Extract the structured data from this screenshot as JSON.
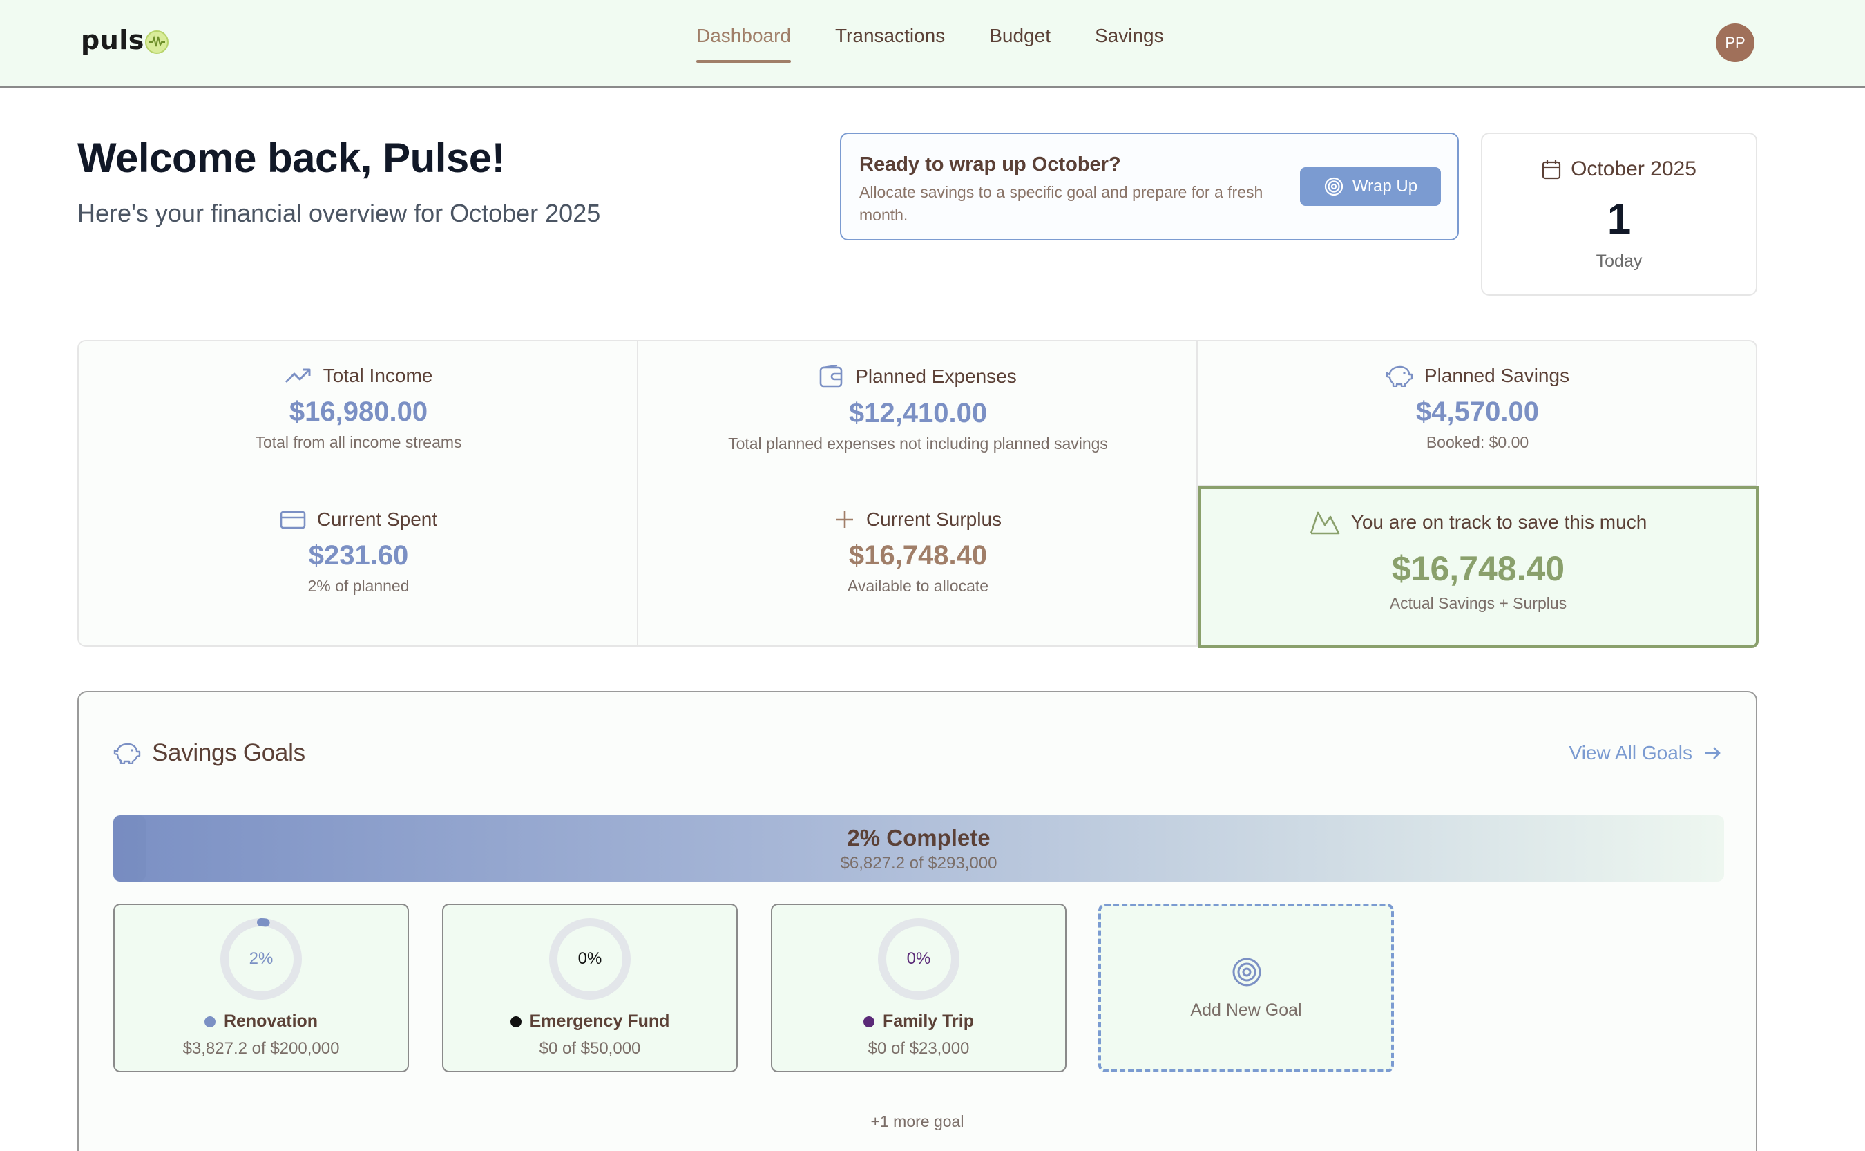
{
  "header": {
    "logo_text": "puls",
    "nav": [
      {
        "label": "Dashboard",
        "active": true
      },
      {
        "label": "Transactions",
        "active": false
      },
      {
        "label": "Budget",
        "active": false
      },
      {
        "label": "Savings",
        "active": false
      }
    ],
    "avatar_initials": "PP"
  },
  "welcome": {
    "title": "Welcome back, Pulse!",
    "subtitle": "Here's your financial overview for October 2025"
  },
  "wrapup": {
    "title": "Ready to wrap up October?",
    "description": "Allocate savings to a specific goal and prepare for a fresh month.",
    "button_label": "Wrap Up"
  },
  "date_card": {
    "month": "October 2025",
    "day": "1",
    "label": "Today"
  },
  "stats": {
    "total_income": {
      "label": "Total Income",
      "value": "$16,980.00",
      "note": "Total from all income streams"
    },
    "planned_expenses": {
      "label": "Planned Expenses",
      "value": "$12,410.00",
      "note": "Total planned expenses not including planned savings"
    },
    "planned_savings": {
      "label": "Planned Savings",
      "value": "$4,570.00",
      "note": "Booked: $0.00"
    },
    "current_spent": {
      "label": "Current Spent",
      "value": "$231.60",
      "note": "2% of planned"
    },
    "current_surplus": {
      "label": "Current Surplus",
      "value": "$16,748.40",
      "note": "Available to allocate"
    },
    "on_track": {
      "label": "You are on track to save this much",
      "value": "$16,748.40",
      "note": "Actual Savings + Surplus"
    }
  },
  "savings_goals": {
    "title": "Savings Goals",
    "view_all_label": "View All Goals",
    "overall": {
      "title": "2% Complete",
      "subtitle": "$6,827.2 of $293,000",
      "percent": 2
    },
    "goals": [
      {
        "name": "Renovation",
        "percent_label": "2%",
        "percent": 2,
        "amount": "$3,827.2 of $200,000",
        "color": "#7b90c4"
      },
      {
        "name": "Emergency Fund",
        "percent_label": "0%",
        "percent": 0,
        "amount": "$0 of $50,000",
        "color": "#111111"
      },
      {
        "name": "Family Trip",
        "percent_label": "0%",
        "percent": 0,
        "amount": "$0 of $23,000",
        "color": "#5b2a78"
      }
    ],
    "add_label": "Add New Goal",
    "more_label": "+1 more goal"
  },
  "colors": {
    "accent_blue": "#7b9bd1",
    "brown": "#a07e68",
    "green": "#8aa06c",
    "header_bg": "#f1fbf2"
  }
}
